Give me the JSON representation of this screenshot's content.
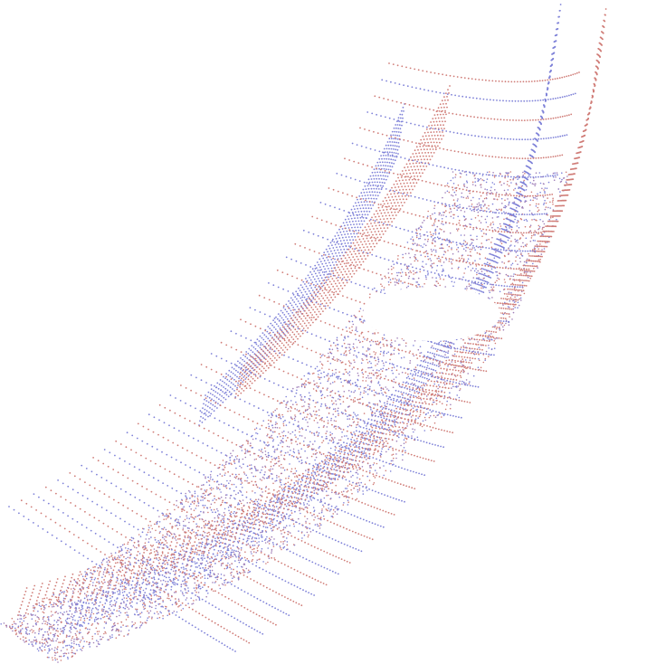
{
  "image": {
    "subject": "point-cloud-curved-channel",
    "background_color": "#ffffff"
  },
  "palette": {
    "blue_points": "#7f82d8",
    "red_points": "#d07d78",
    "floor_mix": "#a07fb8"
  },
  "scene": {
    "wall_count": 4,
    "has_central_hole": true
  }
}
